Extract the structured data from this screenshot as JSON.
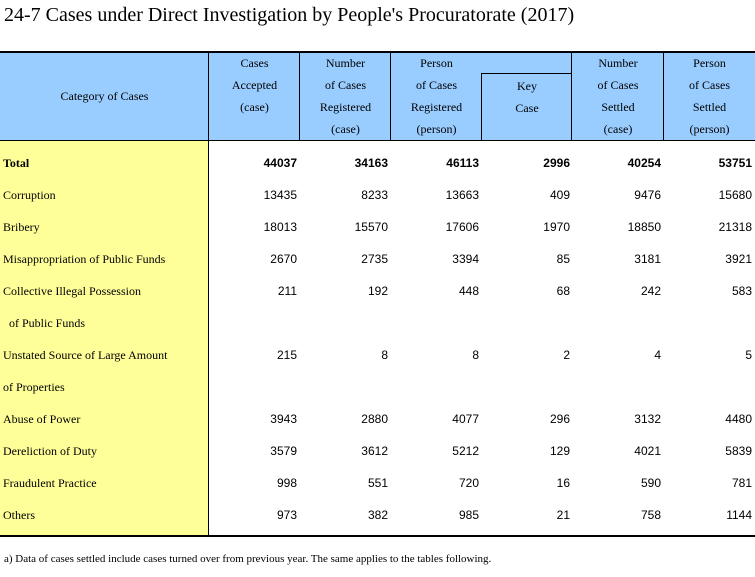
{
  "title": "24-7  Cases under Direct Investigation by People's Procuratorate (2017)",
  "header": {
    "category": "Category of Cases",
    "columns": [
      {
        "lines": [
          "Cases",
          "Accepted",
          "(case)"
        ]
      },
      {
        "lines": [
          "Number",
          "of Cases",
          "Registered",
          "(case)"
        ]
      },
      {
        "lines": [
          "Person",
          "of Cases",
          "Registered",
          "(person)"
        ]
      },
      {
        "lines": [
          "Key",
          "Case"
        ]
      },
      {
        "lines": [
          "Number",
          "of Cases",
          "Settled",
          "(case)"
        ]
      },
      {
        "lines": [
          "Person",
          "of Cases",
          "Settled",
          "(person)"
        ]
      }
    ]
  },
  "rows": [
    {
      "label": "Total",
      "values": [
        "44037",
        "34163",
        "46113",
        "2996",
        "40254",
        "53751"
      ]
    },
    {
      "label": "Corruption",
      "values": [
        "13435",
        "8233",
        "13663",
        "409",
        "9476",
        "15680"
      ]
    },
    {
      "label": "Bribery",
      "values": [
        "18013",
        "15570",
        "17606",
        "1970",
        "18850",
        "21318"
      ]
    },
    {
      "label": "Misappropriation of Public Funds",
      "values": [
        "2670",
        "2735",
        "3394",
        "85",
        "3181",
        "3921"
      ]
    },
    {
      "label": "Collective Illegal Possession",
      "values": [
        "211",
        "192",
        "448",
        "68",
        "242",
        "583"
      ]
    },
    {
      "label": "  of Public Funds",
      "values": [
        "",
        "",
        "",
        "",
        "",
        ""
      ]
    },
    {
      "label": "Unstated Source of Large Amount",
      "values": [
        "215",
        "8",
        "8",
        "2",
        "4",
        "5"
      ]
    },
    {
      "label": "of Properties",
      "values": [
        "",
        "",
        "",
        "",
        "",
        ""
      ]
    },
    {
      "label": "Abuse of Power",
      "values": [
        "3943",
        "2880",
        "4077",
        "296",
        "3132",
        "4480"
      ]
    },
    {
      "label": "Dereliction of Duty",
      "values": [
        "3579",
        "3612",
        "5212",
        "129",
        "4021",
        "5839"
      ]
    },
    {
      "label": "Fraudulent Practice",
      "values": [
        "998",
        "551",
        "720",
        "16",
        "590",
        "781"
      ]
    },
    {
      "label": "Others",
      "values": [
        "973",
        "382",
        "985",
        "21",
        "758",
        "1144"
      ]
    }
  ],
  "note": "a) Data of cases settled include cases turned over from previous year. The same applies to the tables following."
}
